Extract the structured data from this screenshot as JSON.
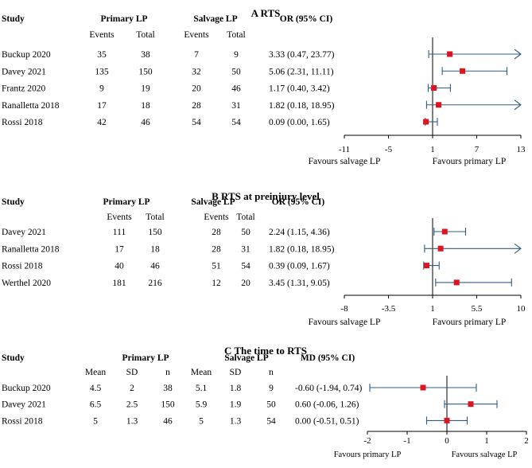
{
  "colors": {
    "ci_line": "#2e5c8a",
    "marker": "#e0141e",
    "axis": "#000000"
  },
  "chart_data": [
    {
      "type": "forest",
      "title": "A RTS",
      "columns": {
        "study": "Study",
        "group1": "Primary LP",
        "group2": "Salvage LP",
        "effect": "OR (95% CI)",
        "sub": [
          "Events",
          "Total",
          "Events",
          "Total"
        ]
      },
      "rows": [
        {
          "study": "Buckup 2020",
          "cells": [
            "35",
            "38",
            "7",
            "9"
          ],
          "effect_text": "3.33 (0.47, 23.77)",
          "estimate": 3.33,
          "lower": 0.47,
          "upper": 23.77,
          "arrow_right": true
        },
        {
          "study": "Davey 2021",
          "cells": [
            "135",
            "150",
            "32",
            "50"
          ],
          "effect_text": "5.06 (2.31, 11.11)",
          "estimate": 5.06,
          "lower": 2.31,
          "upper": 11.11,
          "arrow_right": false
        },
        {
          "study": "Frantz 2020",
          "cells": [
            "9",
            "19",
            "20",
            "46"
          ],
          "effect_text": "1.17 (0.40, 3.42)",
          "estimate": 1.17,
          "lower": 0.4,
          "upper": 3.42,
          "arrow_right": false
        },
        {
          "study": "Ranalletta 2018",
          "cells": [
            "17",
            "18",
            "28",
            "31"
          ],
          "effect_text": "1.82 (0.18, 18.95)",
          "estimate": 1.82,
          "lower": 0.18,
          "upper": 18.95,
          "arrow_right": true
        },
        {
          "study": "Rossi 2018",
          "cells": [
            "42",
            "46",
            "54",
            "54"
          ],
          "effect_text": "0.09 (0.00, 1.65)",
          "estimate": 0.09,
          "lower": 0.0,
          "upper": 1.65,
          "arrow_right": false
        }
      ],
      "axis": {
        "min": -11,
        "max": 13,
        "ref": 1,
        "ticks": [
          "-11",
          "-5",
          "1",
          "7",
          "13"
        ]
      },
      "favours_left": "Favours salvage LP",
      "favours_right": "Favours primary LP"
    },
    {
      "type": "forest",
      "title": "B RTS at preinjury level",
      "columns": {
        "study": "Study",
        "group1": "Primary LP",
        "group2": "Salvage LP",
        "effect": "OR (95% CI)",
        "sub": [
          "Events",
          "Total",
          "Events",
          "Total"
        ]
      },
      "rows": [
        {
          "study": "Davey 2021",
          "cells": [
            "111",
            "150",
            "28",
            "50"
          ],
          "effect_text": "2.24 (1.15, 4.36)",
          "estimate": 2.24,
          "lower": 1.15,
          "upper": 4.36,
          "arrow_right": false
        },
        {
          "study": "Ranalletta 2018",
          "cells": [
            "17",
            "18",
            "28",
            "31"
          ],
          "effect_text": "1.82 (0.18, 18.95)",
          "estimate": 1.82,
          "lower": 0.18,
          "upper": 18.95,
          "arrow_right": true
        },
        {
          "study": "Rossi 2018",
          "cells": [
            "40",
            "46",
            "51",
            "54"
          ],
          "effect_text": "0.39 (0.09, 1.67)",
          "estimate": 0.39,
          "lower": 0.09,
          "upper": 1.67,
          "arrow_right": false
        },
        {
          "study": "Werthel 2020",
          "cells": [
            "181",
            "216",
            "12",
            "20"
          ],
          "effect_text": "3.45 (1.31, 9.05)",
          "estimate": 3.45,
          "lower": 1.31,
          "upper": 9.05,
          "arrow_right": false
        }
      ],
      "axis": {
        "min": -8,
        "max": 10,
        "ref": 1,
        "ticks": [
          "-8",
          "-3.5",
          "1",
          "5.5",
          "10"
        ]
      },
      "favours_left": "Favours salvage LP",
      "favours_right": "Favours primary LP"
    },
    {
      "type": "forest",
      "title": "C The time to RTS",
      "columns": {
        "study": "Study",
        "group1": "Primary LP",
        "group2": "Salvage LP",
        "effect": "MD (95% CI)",
        "sub": [
          "Mean",
          "SD",
          "n",
          "Mean",
          "SD",
          "n"
        ]
      },
      "rows": [
        {
          "study": "Buckup 2020",
          "cells": [
            "4.5",
            "2",
            "38",
            "5.1",
            "1.8",
            "9"
          ],
          "effect_text": "-0.60 (-1.94, 0.74)",
          "estimate": -0.6,
          "lower": -1.94,
          "upper": 0.74,
          "arrow_right": false
        },
        {
          "study": "Davey 2021",
          "cells": [
            "6.5",
            "2.5",
            "150",
            "5.9",
            "1.9",
            "50"
          ],
          "effect_text": "0.60 (-0.06, 1.26)",
          "estimate": 0.6,
          "lower": -0.06,
          "upper": 1.26,
          "arrow_right": false
        },
        {
          "study": "Rossi 2018",
          "cells": [
            "5",
            "1.3",
            "46",
            "5",
            "1.3",
            "54"
          ],
          "effect_text": "0.00 (-0.51, 0.51)",
          "estimate": 0.0,
          "lower": -0.51,
          "upper": 0.51,
          "arrow_right": false
        }
      ],
      "axis": {
        "min": -2,
        "max": 2,
        "ref": 0,
        "ticks": [
          "-2",
          "-1",
          "0",
          "1",
          "2"
        ]
      },
      "favours_left": "Favours primary LP",
      "favours_right": "Favours salvage LP"
    }
  ]
}
